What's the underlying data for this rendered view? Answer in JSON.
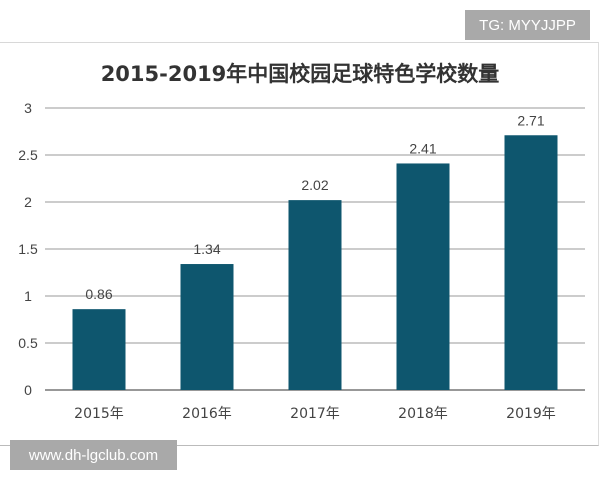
{
  "watermarks": {
    "top_right": "TG: MYYJJPP",
    "bottom_left": "www.dh-lgclub.com"
  },
  "chart_data": {
    "type": "bar",
    "title": "2015-2019年中国校园足球特色学校数量",
    "categories": [
      "2015年",
      "2016年",
      "2017年",
      "2018年",
      "2019年"
    ],
    "values": [
      0.86,
      1.34,
      2.02,
      2.41,
      2.71
    ],
    "data_labels": [
      "0.86",
      "1.34",
      "2.02",
      "2.41",
      "2.71"
    ],
    "ylim": [
      0,
      3
    ],
    "yticks": [
      0,
      0.5,
      1,
      1.5,
      2,
      2.5,
      3
    ],
    "ytick_labels": [
      "0",
      "0.5",
      "1",
      "1.5",
      "2",
      "2.5",
      "3"
    ],
    "xlabel": "",
    "ylabel": "",
    "grid": true,
    "bar_color": "#0e566e"
  }
}
